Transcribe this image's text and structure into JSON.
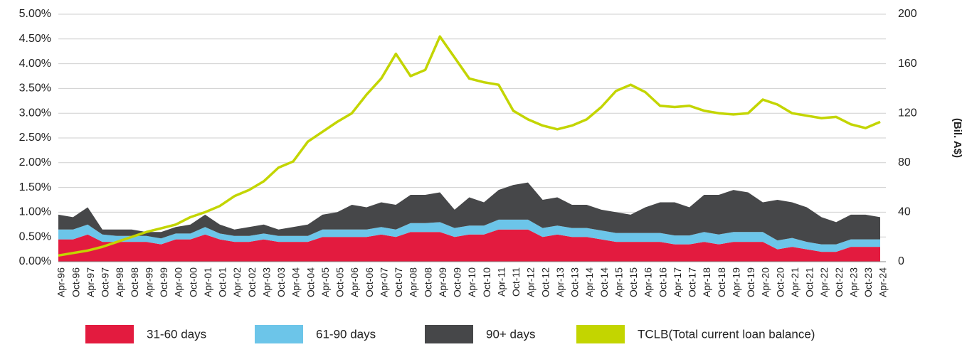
{
  "chart_data": {
    "type": "stacked-area-line",
    "categories": [
      "Apr-96",
      "Oct-96",
      "Apr-97",
      "Oct-97",
      "Apr-98",
      "Oct-98",
      "Apr-99",
      "Oct-99",
      "Apr-00",
      "Oct-00",
      "Apr-01",
      "Oct-01",
      "Apr-02",
      "Oct-02",
      "Apr-03",
      "Oct-03",
      "Apr-04",
      "Oct-04",
      "Apr-05",
      "Oct-05",
      "Apr-06",
      "Oct-06",
      "Apr-07",
      "Oct-07",
      "Apr-08",
      "Oct-08",
      "Apr-09",
      "Oct-09",
      "Apr-10",
      "Oct-10",
      "Apr-11",
      "Oct-11",
      "Apr-12",
      "Oct-12",
      "Apr-13",
      "Oct-13",
      "Apr-14",
      "Oct-14",
      "Apr-15",
      "Oct-15",
      "Apr-16",
      "Oct-16",
      "Apr-17",
      "Oct-17",
      "Apr-18",
      "Oct-18",
      "Apr-19",
      "Oct-19",
      "Apr-20",
      "Oct-20",
      "Apr-21",
      "Oct-21",
      "Apr-22",
      "Oct-22",
      "Apr-23",
      "Oct-23",
      "Apr-24"
    ],
    "series": [
      {
        "name": "31-60 days",
        "color": "#e31b3f",
        "values": [
          0.45,
          0.45,
          0.55,
          0.4,
          0.4,
          0.4,
          0.4,
          0.35,
          0.45,
          0.45,
          0.55,
          0.45,
          0.4,
          0.4,
          0.45,
          0.4,
          0.4,
          0.4,
          0.5,
          0.5,
          0.5,
          0.5,
          0.55,
          0.5,
          0.6,
          0.6,
          0.6,
          0.5,
          0.55,
          0.55,
          0.65,
          0.65,
          0.65,
          0.5,
          0.55,
          0.5,
          0.5,
          0.45,
          0.4,
          0.4,
          0.4,
          0.4,
          0.35,
          0.35,
          0.4,
          0.35,
          0.4,
          0.4,
          0.4,
          0.25,
          0.3,
          0.25,
          0.2,
          0.2,
          0.3,
          0.3,
          0.3
        ]
      },
      {
        "name": "61-90 days",
        "color": "#6cc5e9",
        "values": [
          0.2,
          0.2,
          0.2,
          0.15,
          0.12,
          0.12,
          0.12,
          0.12,
          0.12,
          0.12,
          0.15,
          0.12,
          0.12,
          0.12,
          0.12,
          0.12,
          0.12,
          0.12,
          0.15,
          0.15,
          0.15,
          0.15,
          0.15,
          0.15,
          0.18,
          0.18,
          0.2,
          0.18,
          0.18,
          0.18,
          0.2,
          0.2,
          0.2,
          0.18,
          0.18,
          0.18,
          0.18,
          0.18,
          0.18,
          0.18,
          0.18,
          0.18,
          0.18,
          0.18,
          0.2,
          0.2,
          0.2,
          0.2,
          0.2,
          0.18,
          0.18,
          0.15,
          0.15,
          0.15,
          0.15,
          0.15,
          0.15
        ]
      },
      {
        "name": "90+ days",
        "color": "#464749",
        "values": [
          0.3,
          0.25,
          0.35,
          0.1,
          0.13,
          0.13,
          0.08,
          0.13,
          0.13,
          0.18,
          0.25,
          0.18,
          0.13,
          0.18,
          0.18,
          0.13,
          0.18,
          0.23,
          0.3,
          0.35,
          0.5,
          0.45,
          0.5,
          0.5,
          0.57,
          0.57,
          0.6,
          0.37,
          0.57,
          0.47,
          0.6,
          0.7,
          0.75,
          0.57,
          0.57,
          0.47,
          0.47,
          0.42,
          0.42,
          0.37,
          0.52,
          0.62,
          0.67,
          0.57,
          0.75,
          0.8,
          0.85,
          0.8,
          0.6,
          0.82,
          0.72,
          0.7,
          0.55,
          0.45,
          0.5,
          0.5,
          0.45
        ]
      },
      {
        "name": "TCLB(Total current loan balance)",
        "color": "#c3d500",
        "axis": "y2",
        "values": [
          5,
          7,
          9,
          12,
          16,
          20,
          24,
          27,
          30,
          36,
          40,
          45,
          53,
          58,
          65,
          76,
          81,
          97,
          105,
          113,
          120,
          135,
          148,
          168,
          150,
          155,
          182,
          165,
          148,
          145,
          143,
          122,
          115,
          110,
          107,
          110,
          115,
          125,
          138,
          143,
          137,
          126,
          125,
          126,
          122,
          120,
          119,
          120,
          131,
          127,
          120,
          118,
          116,
          117,
          111,
          108,
          113
        ]
      }
    ],
    "ylim": [
      0,
      5
    ],
    "yticks": [
      {
        "value": 0,
        "label": "0.00%"
      },
      {
        "value": 0.5,
        "label": "0.50%"
      },
      {
        "value": 1,
        "label": "1.00%"
      },
      {
        "value": 1.5,
        "label": "1.50%"
      },
      {
        "value": 2,
        "label": "2.00%"
      },
      {
        "value": 2.5,
        "label": "2.50%"
      },
      {
        "value": 3,
        "label": "3.00%"
      },
      {
        "value": 3.5,
        "label": "3.50%"
      },
      {
        "value": 4,
        "label": "4.00%"
      },
      {
        "value": 4.5,
        "label": "4.50%"
      },
      {
        "value": 5,
        "label": "5.00%"
      }
    ],
    "y2lim": [
      0,
      200
    ],
    "y2ticks": [
      0,
      40,
      80,
      120,
      160,
      200
    ],
    "y2_label": "(Bil. A$)",
    "grid": true
  }
}
